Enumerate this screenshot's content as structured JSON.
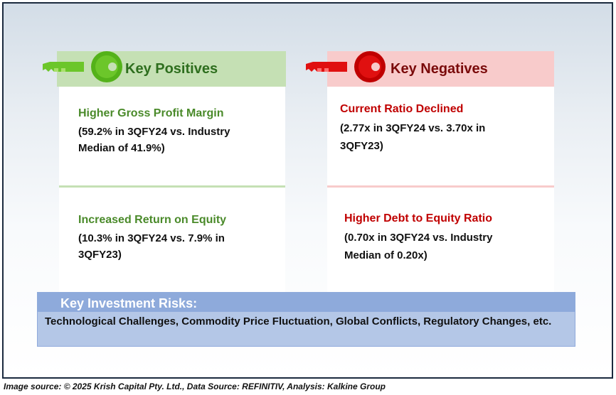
{
  "positives": {
    "title": "Key Positives",
    "items": [
      {
        "heading": "Higher Gross Profit Margin",
        "detail_line1": "(59.2% in 3QFY24 vs. Industry",
        "detail_line2": "Median of 41.9%)"
      },
      {
        "heading": "Increased Return on Equity",
        "detail_line1": "(10.3% in 3QFY24 vs. 7.9% in",
        "detail_line2": "3QFY23)"
      }
    ]
  },
  "negatives": {
    "title": "Key Negatives",
    "items": [
      {
        "heading": "Current Ratio Declined",
        "detail_line1": "(2.77x in 3QFY24 vs. 3.70x in",
        "detail_line2": "3QFY23)"
      },
      {
        "heading": "Higher Debt to Equity Ratio",
        "detail_line1": "(0.70x in 3QFY24 vs. Industry",
        "detail_line2": "Median of 0.20x)"
      }
    ]
  },
  "risks": {
    "title": "Key Investment Risks:",
    "text": "Technological Challenges, Commodity Price Fluctuation, Global Conflicts, Regulatory Changes, etc."
  },
  "source_note": "Image source: © 2025 Krish Capital Pty. Ltd., Data Source: REFINITIV, Analysis: Kalkine Group",
  "colors": {
    "positive_accent": "#4a8a2a",
    "negative_accent": "#c00000",
    "positive_header_bg": "#c5e0b4",
    "negative_header_bg": "#f8cbcb",
    "risk_bg": "#b4c7e7"
  },
  "icons": {
    "positive": "green-key-icon",
    "negative": "red-key-icon"
  }
}
